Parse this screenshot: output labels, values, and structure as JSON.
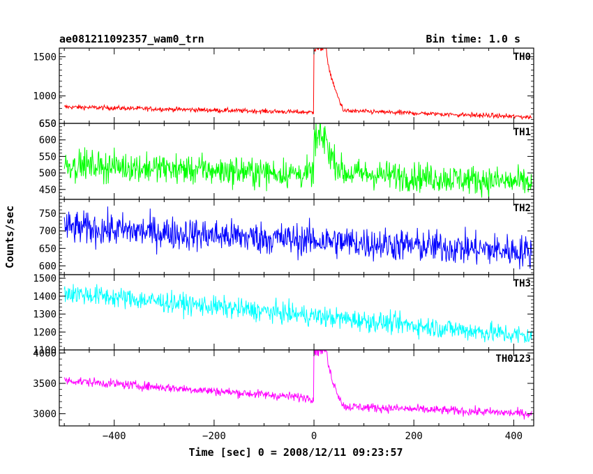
{
  "header": {
    "left_title": "ae081211092357_wam0_trn",
    "right_title": "Bin time: 1.0 s"
  },
  "chart_data": {
    "type": "line",
    "title": "ae081211092357_wam0_trn",
    "subtitle": "Bin time: 1.0 s",
    "xlabel": "Time [sec] 0 = 2008/12/11 09:23:57",
    "ylabel": "Counts/sec",
    "xlim": [
      -510,
      440
    ],
    "x_ticks": [
      -400,
      -200,
      0,
      200,
      400
    ],
    "x_tick_labels": [
      "−400",
      "−200",
      "0",
      "200",
      "400"
    ],
    "bin_time": 1.0,
    "grid": false,
    "legend": "none",
    "panels": [
      {
        "name": "TH0",
        "color": "#ff0000",
        "ylim": [
          650,
          1610
        ],
        "y_ticks": [
          650,
          1000,
          1500
        ],
        "y_tick_labels": [
          "650",
          "1000",
          "1500"
        ],
        "baseline_start": 860,
        "baseline_end": 730,
        "noise": 28,
        "burst": {
          "start": 0,
          "peak_end": 25,
          "peak": 1610,
          "decay_end": 60,
          "post_level": 810
        }
      },
      {
        "name": "TH1",
        "color": "#00ff00",
        "ylim": [
          420,
          650
        ],
        "y_ticks": [
          450,
          500,
          550,
          600,
          650
        ],
        "y_tick_labels": [
          "450",
          "500",
          "550",
          "600",
          "650"
        ],
        "baseline_start": 525,
        "baseline_end": 470,
        "noise": 42,
        "burst": {
          "start": 0,
          "peak_end": 25,
          "peak": 600,
          "decay_end": 60,
          "post_level": 500
        }
      },
      {
        "name": "TH2",
        "color": "#0000ff",
        "ylim": [
          575,
          790
        ],
        "y_ticks": [
          600,
          650,
          700,
          750
        ],
        "y_tick_labels": [
          "600",
          "650",
          "700",
          "750"
        ],
        "baseline_start": 710,
        "baseline_end": 640,
        "noise": 45,
        "burst": null
      },
      {
        "name": "TH3",
        "color": "#00ffff",
        "ylim": [
          1100,
          1520
        ],
        "y_ticks": [
          1100,
          1200,
          1300,
          1400,
          1500
        ],
        "y_tick_labels": [
          "1100",
          "1200",
          "1300",
          "1400",
          "1500"
        ],
        "baseline_start": 1420,
        "baseline_end": 1175,
        "noise": 55,
        "burst": null
      },
      {
        "name": "TH0123",
        "color": "#ff00ff",
        "ylim": [
          2800,
          4050
        ],
        "y_ticks": [
          3000,
          3500,
          4000
        ],
        "y_tick_labels": [
          "3000",
          "3500",
          "4000"
        ],
        "baseline_start": 3550,
        "baseline_end": 3000,
        "noise": 70,
        "burst": {
          "start": 0,
          "peak_end": 25,
          "peak": 4050,
          "decay_end": 60,
          "post_level": 3120
        }
      }
    ]
  }
}
